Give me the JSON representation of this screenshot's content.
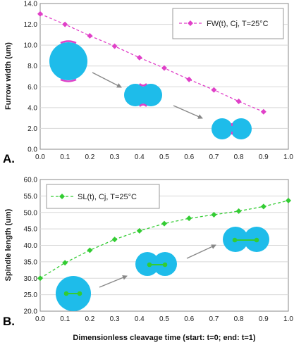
{
  "chart_data": [
    {
      "type": "line",
      "panel_label": "A.",
      "x": [
        0.0,
        0.1,
        0.2,
        0.3,
        0.4,
        0.5,
        0.6,
        0.7,
        0.8,
        0.9
      ],
      "series": [
        {
          "name": "FW(t), Cj, T=25°C",
          "color": "#e040c8",
          "marker": "diamond",
          "style": "dashed",
          "values": [
            13.0,
            12.0,
            10.9,
            9.9,
            8.8,
            7.8,
            6.7,
            5.7,
            4.6,
            3.6
          ]
        }
      ],
      "xlim": [
        0.0,
        1.0
      ],
      "ylim": [
        0.0,
        14.0
      ],
      "xticks": [
        "0.0",
        "0.1",
        "0.2",
        "0.3",
        "0.4",
        "0.5",
        "0.6",
        "0.7",
        "0.8",
        "0.9",
        "1.0"
      ],
      "yticks": [
        "0.0",
        "2.0",
        "4.0",
        "6.0",
        "8.0",
        "10.0",
        "12.0",
        "14.0"
      ],
      "xlabel": "",
      "ylabel": "Furrow width (um)",
      "grid": "horizontal",
      "legend_position": "top-right"
    },
    {
      "type": "line",
      "panel_label": "B.",
      "x": [
        0.0,
        0.1,
        0.2,
        0.3,
        0.4,
        0.5,
        0.6,
        0.7,
        0.8,
        0.9,
        1.0
      ],
      "series": [
        {
          "name": "SL(t), Cj, T=25°C",
          "color": "#33cc33",
          "marker": "diamond",
          "style": "dashed",
          "values": [
            30.0,
            34.7,
            38.5,
            41.8,
            44.4,
            46.6,
            48.2,
            49.3,
            50.4,
            51.8,
            53.6
          ]
        }
      ],
      "xlim": [
        0.0,
        1.0
      ],
      "ylim": [
        20.0,
        60.0
      ],
      "xticks": [
        "0.0",
        "0.1",
        "0.2",
        "0.3",
        "0.4",
        "0.5",
        "0.6",
        "0.7",
        "0.8",
        "0.9",
        "1.0"
      ],
      "yticks": [
        "20.0",
        "25.0",
        "30.0",
        "35.0",
        "40.0",
        "45.0",
        "50.0",
        "55.0",
        "60.0"
      ],
      "xlabel": "Dimensionless cleavage time (start: t=0; end: t=1)",
      "ylabel": "Spindle length (um)",
      "grid": "horizontal",
      "legend_position": "top-left"
    }
  ],
  "colors": {
    "cell_fill": "#1ebcea",
    "furrow_marker": "#e040c8",
    "spindle_marker": "#33cc33",
    "arrow": "#888888",
    "grid": "#d8d8d8"
  }
}
